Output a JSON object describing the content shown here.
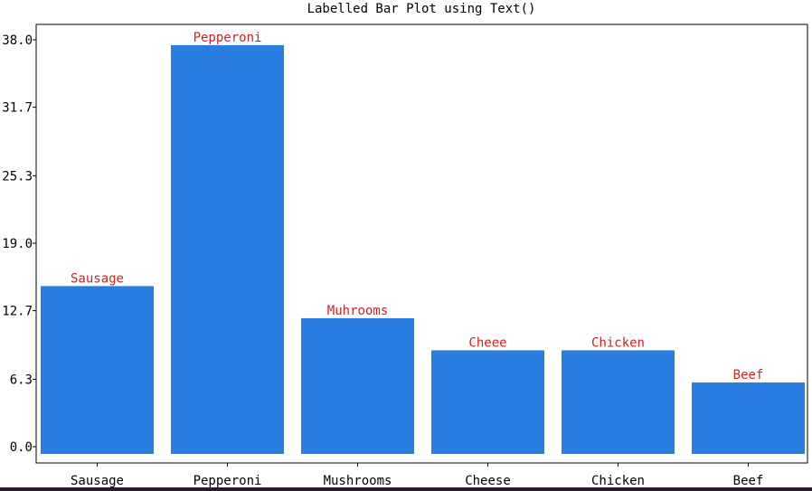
{
  "chart_data": {
    "type": "bar",
    "title": "Labelled Bar Plot using Text()",
    "xlabel": "",
    "ylabel": "",
    "categories": [
      "Sausage",
      "Pepperoni",
      "Mushrooms",
      "Cheese",
      "Chicken",
      "Beef"
    ],
    "values": [
      15,
      37.5,
      12,
      9,
      9,
      6
    ],
    "data_labels": [
      "Sausage",
      "Pepperoni",
      "Muhrooms",
      "Cheee",
      "Chicken",
      "Beef"
    ],
    "yticks": [
      "0.0",
      "6.3",
      "12.7",
      "19.0",
      "25.3",
      "31.7",
      "38.0"
    ],
    "ylim": [
      -0.7,
      39.5
    ],
    "grid": false,
    "colors": {
      "bar": "#2a7de1",
      "label": "#cc2222",
      "axis": "#000000"
    }
  }
}
